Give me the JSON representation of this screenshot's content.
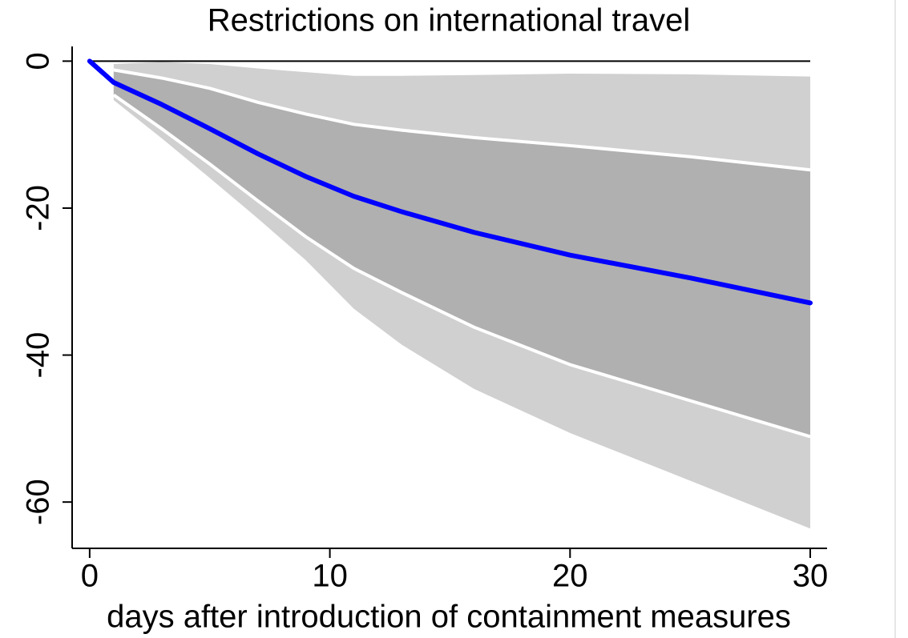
{
  "chart_data": {
    "type": "line",
    "title": "Restrictions on international travel",
    "x_label": "days after introduction of containment measures",
    "x": [
      0,
      1,
      3,
      5,
      7,
      9,
      11,
      13,
      16,
      20,
      25,
      30
    ],
    "series": [
      {
        "color": "#0000ff",
        "values": [
          0,
          -2.9,
          -5.9,
          -9.2,
          -12.6,
          -15.7,
          -18.4,
          -20.5,
          -23.3,
          -26.4,
          -29.5,
          -32.9
        ]
      }
    ],
    "bands": [
      {
        "color": "#d0d0d0",
        "upper": [
          null,
          -0.4,
          -0.1,
          -0.4,
          -1,
          -1.5,
          -2,
          -2,
          -1.9,
          -1.7,
          -1.8,
          -2.1
        ],
        "lower": [
          null,
          -5.3,
          -10.5,
          -15.9,
          -21.4,
          -27.1,
          -33.7,
          -38.6,
          -44.6,
          -50.6,
          -57.1,
          -63.6
        ]
      },
      {
        "color": "#b0b0b0",
        "edge_color": "#ffffff",
        "upper": [
          null,
          -1.2,
          -2.3,
          -3.7,
          -5.6,
          -7.2,
          -8.6,
          -9.4,
          -10.4,
          -11.5,
          -13,
          -14.8
        ],
        "lower": [
          null,
          -4.6,
          -9.2,
          -14,
          -19,
          -23.9,
          -28.2,
          -31.5,
          -36.2,
          -41.3,
          -46.2,
          -51.1
        ]
      }
    ],
    "reference_line": 0,
    "xlim": [
      -0.73,
      30.7
    ],
    "ylim": [
      -66.3,
      2
    ],
    "xticks": [
      0,
      10,
      20,
      30
    ],
    "yticks": [
      0,
      -20,
      -40,
      -60
    ]
  }
}
